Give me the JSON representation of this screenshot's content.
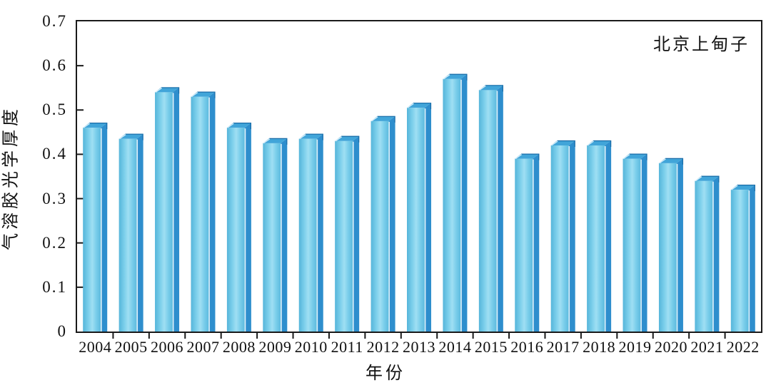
{
  "chart_data": {
    "type": "bar",
    "title": "北京上甸子",
    "xlabel": "年份",
    "ylabel": "气溶胶光学厚度",
    "ylim": [
      0,
      0.7
    ],
    "ytick_labels": [
      "0",
      "0.1",
      "0.2",
      "0.3",
      "0.4",
      "0.5",
      "0.6",
      "0.7"
    ],
    "grid": "off",
    "legend": "none",
    "bar_style": "3d-column",
    "categories": [
      "2004",
      "2005",
      "2006",
      "2007",
      "2008",
      "2009",
      "2010",
      "2011",
      "2012",
      "2013",
      "2014",
      "2015",
      "2016",
      "2017",
      "2018",
      "2019",
      "2020",
      "2021",
      "2022"
    ],
    "values": [
      0.46,
      0.435,
      0.54,
      0.53,
      0.46,
      0.425,
      0.435,
      0.43,
      0.475,
      0.505,
      0.57,
      0.545,
      0.39,
      0.42,
      0.42,
      0.39,
      0.38,
      0.34,
      0.32
    ],
    "colors": {
      "front_left": "#55b5da",
      "front_mid": "#9fdff3",
      "front_right": "#5cbade",
      "side": "#2e8ecd",
      "top": "#41a5d9",
      "edge_dark": "#1a6da8",
      "highlight": "#f2fbff",
      "axis": "#1a1a1a"
    }
  }
}
